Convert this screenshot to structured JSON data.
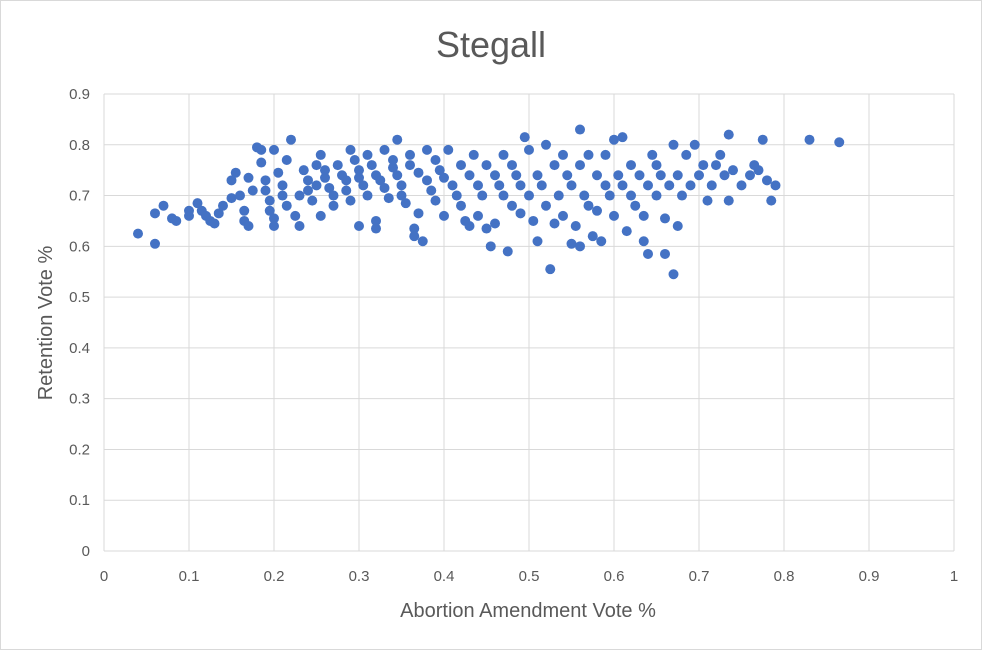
{
  "chart_data": {
    "type": "scatter",
    "title": "Stegall",
    "xlabel": "Abortion Amendment Vote %",
    "ylabel": "Retention Vote %",
    "xlim": [
      0,
      1
    ],
    "ylim": [
      0,
      0.9
    ],
    "xticks": [
      "0",
      "0.1",
      "0.2",
      "0.3",
      "0.4",
      "0.5",
      "0.6",
      "0.7",
      "0.8",
      "0.9",
      "1"
    ],
    "yticks": [
      "0",
      "0.1",
      "0.2",
      "0.3",
      "0.4",
      "0.5",
      "0.6",
      "0.7",
      "0.8",
      "0.9"
    ],
    "grid": {
      "x": true,
      "y": true
    },
    "marker_color": "#4472C4",
    "points": [
      [
        0.04,
        0.625
      ],
      [
        0.06,
        0.605
      ],
      [
        0.06,
        0.665
      ],
      [
        0.07,
        0.68
      ],
      [
        0.08,
        0.655
      ],
      [
        0.085,
        0.65
      ],
      [
        0.1,
        0.66
      ],
      [
        0.1,
        0.67
      ],
      [
        0.11,
        0.685
      ],
      [
        0.115,
        0.67
      ],
      [
        0.12,
        0.66
      ],
      [
        0.125,
        0.65
      ],
      [
        0.13,
        0.645
      ],
      [
        0.135,
        0.665
      ],
      [
        0.14,
        0.68
      ],
      [
        0.15,
        0.695
      ],
      [
        0.15,
        0.73
      ],
      [
        0.155,
        0.745
      ],
      [
        0.16,
        0.7
      ],
      [
        0.165,
        0.67
      ],
      [
        0.165,
        0.65
      ],
      [
        0.17,
        0.64
      ],
      [
        0.17,
        0.735
      ],
      [
        0.175,
        0.71
      ],
      [
        0.18,
        0.795
      ],
      [
        0.185,
        0.79
      ],
      [
        0.185,
        0.765
      ],
      [
        0.19,
        0.73
      ],
      [
        0.19,
        0.71
      ],
      [
        0.195,
        0.69
      ],
      [
        0.195,
        0.67
      ],
      [
        0.2,
        0.64
      ],
      [
        0.2,
        0.655
      ],
      [
        0.2,
        0.79
      ],
      [
        0.205,
        0.745
      ],
      [
        0.21,
        0.72
      ],
      [
        0.21,
        0.7
      ],
      [
        0.215,
        0.68
      ],
      [
        0.215,
        0.77
      ],
      [
        0.22,
        0.81
      ],
      [
        0.225,
        0.66
      ],
      [
        0.23,
        0.7
      ],
      [
        0.23,
        0.64
      ],
      [
        0.235,
        0.75
      ],
      [
        0.24,
        0.73
      ],
      [
        0.24,
        0.71
      ],
      [
        0.245,
        0.69
      ],
      [
        0.25,
        0.76
      ],
      [
        0.25,
        0.72
      ],
      [
        0.255,
        0.78
      ],
      [
        0.255,
        0.66
      ],
      [
        0.26,
        0.75
      ],
      [
        0.26,
        0.735
      ],
      [
        0.265,
        0.715
      ],
      [
        0.27,
        0.7
      ],
      [
        0.27,
        0.68
      ],
      [
        0.275,
        0.76
      ],
      [
        0.28,
        0.74
      ],
      [
        0.285,
        0.73
      ],
      [
        0.285,
        0.71
      ],
      [
        0.29,
        0.79
      ],
      [
        0.29,
        0.69
      ],
      [
        0.295,
        0.77
      ],
      [
        0.3,
        0.75
      ],
      [
        0.3,
        0.735
      ],
      [
        0.3,
        0.64
      ],
      [
        0.305,
        0.72
      ],
      [
        0.31,
        0.78
      ],
      [
        0.31,
        0.7
      ],
      [
        0.315,
        0.76
      ],
      [
        0.32,
        0.74
      ],
      [
        0.32,
        0.65
      ],
      [
        0.32,
        0.635
      ],
      [
        0.325,
        0.73
      ],
      [
        0.33,
        0.79
      ],
      [
        0.33,
        0.715
      ],
      [
        0.335,
        0.695
      ],
      [
        0.34,
        0.77
      ],
      [
        0.34,
        0.755
      ],
      [
        0.345,
        0.81
      ],
      [
        0.345,
        0.74
      ],
      [
        0.35,
        0.72
      ],
      [
        0.35,
        0.7
      ],
      [
        0.355,
        0.685
      ],
      [
        0.36,
        0.78
      ],
      [
        0.36,
        0.76
      ],
      [
        0.365,
        0.635
      ],
      [
        0.365,
        0.62
      ],
      [
        0.37,
        0.745
      ],
      [
        0.37,
        0.665
      ],
      [
        0.375,
        0.61
      ],
      [
        0.38,
        0.73
      ],
      [
        0.38,
        0.79
      ],
      [
        0.385,
        0.71
      ],
      [
        0.39,
        0.77
      ],
      [
        0.39,
        0.69
      ],
      [
        0.395,
        0.75
      ],
      [
        0.4,
        0.735
      ],
      [
        0.4,
        0.66
      ],
      [
        0.405,
        0.79
      ],
      [
        0.41,
        0.72
      ],
      [
        0.415,
        0.7
      ],
      [
        0.42,
        0.76
      ],
      [
        0.42,
        0.68
      ],
      [
        0.425,
        0.65
      ],
      [
        0.43,
        0.74
      ],
      [
        0.43,
        0.64
      ],
      [
        0.435,
        0.78
      ],
      [
        0.44,
        0.72
      ],
      [
        0.44,
        0.66
      ],
      [
        0.445,
        0.7
      ],
      [
        0.45,
        0.76
      ],
      [
        0.45,
        0.635
      ],
      [
        0.455,
        0.6
      ],
      [
        0.46,
        0.74
      ],
      [
        0.46,
        0.645
      ],
      [
        0.465,
        0.72
      ],
      [
        0.47,
        0.7
      ],
      [
        0.47,
        0.78
      ],
      [
        0.475,
        0.59
      ],
      [
        0.48,
        0.76
      ],
      [
        0.48,
        0.68
      ],
      [
        0.485,
        0.74
      ],
      [
        0.49,
        0.72
      ],
      [
        0.49,
        0.665
      ],
      [
        0.495,
        0.815
      ],
      [
        0.5,
        0.7
      ],
      [
        0.5,
        0.79
      ],
      [
        0.505,
        0.65
      ],
      [
        0.51,
        0.74
      ],
      [
        0.51,
        0.61
      ],
      [
        0.515,
        0.72
      ],
      [
        0.52,
        0.8
      ],
      [
        0.52,
        0.68
      ],
      [
        0.525,
        0.555
      ],
      [
        0.53,
        0.76
      ],
      [
        0.53,
        0.645
      ],
      [
        0.535,
        0.7
      ],
      [
        0.54,
        0.78
      ],
      [
        0.54,
        0.66
      ],
      [
        0.545,
        0.74
      ],
      [
        0.55,
        0.605
      ],
      [
        0.55,
        0.72
      ],
      [
        0.555,
        0.64
      ],
      [
        0.56,
        0.83
      ],
      [
        0.56,
        0.76
      ],
      [
        0.56,
        0.6
      ],
      [
        0.565,
        0.7
      ],
      [
        0.57,
        0.68
      ],
      [
        0.57,
        0.78
      ],
      [
        0.575,
        0.62
      ],
      [
        0.58,
        0.74
      ],
      [
        0.58,
        0.67
      ],
      [
        0.585,
        0.61
      ],
      [
        0.59,
        0.72
      ],
      [
        0.59,
        0.78
      ],
      [
        0.595,
        0.7
      ],
      [
        0.6,
        0.81
      ],
      [
        0.6,
        0.66
      ],
      [
        0.605,
        0.74
      ],
      [
        0.61,
        0.815
      ],
      [
        0.61,
        0.72
      ],
      [
        0.615,
        0.63
      ],
      [
        0.62,
        0.7
      ],
      [
        0.62,
        0.76
      ],
      [
        0.625,
        0.68
      ],
      [
        0.63,
        0.74
      ],
      [
        0.635,
        0.66
      ],
      [
        0.635,
        0.61
      ],
      [
        0.64,
        0.72
      ],
      [
        0.64,
        0.585
      ],
      [
        0.645,
        0.78
      ],
      [
        0.65,
        0.7
      ],
      [
        0.65,
        0.76
      ],
      [
        0.655,
        0.74
      ],
      [
        0.66,
        0.585
      ],
      [
        0.66,
        0.655
      ],
      [
        0.665,
        0.72
      ],
      [
        0.67,
        0.8
      ],
      [
        0.67,
        0.545
      ],
      [
        0.675,
        0.64
      ],
      [
        0.675,
        0.74
      ],
      [
        0.68,
        0.7
      ],
      [
        0.685,
        0.78
      ],
      [
        0.69,
        0.72
      ],
      [
        0.695,
        0.8
      ],
      [
        0.7,
        0.74
      ],
      [
        0.705,
        0.76
      ],
      [
        0.71,
        0.69
      ],
      [
        0.715,
        0.72
      ],
      [
        0.72,
        0.76
      ],
      [
        0.725,
        0.78
      ],
      [
        0.73,
        0.74
      ],
      [
        0.735,
        0.82
      ],
      [
        0.735,
        0.69
      ],
      [
        0.74,
        0.75
      ],
      [
        0.75,
        0.72
      ],
      [
        0.76,
        0.74
      ],
      [
        0.765,
        0.76
      ],
      [
        0.77,
        0.75
      ],
      [
        0.775,
        0.81
      ],
      [
        0.78,
        0.73
      ],
      [
        0.785,
        0.69
      ],
      [
        0.79,
        0.72
      ],
      [
        0.83,
        0.81
      ],
      [
        0.865,
        0.805
      ]
    ]
  }
}
